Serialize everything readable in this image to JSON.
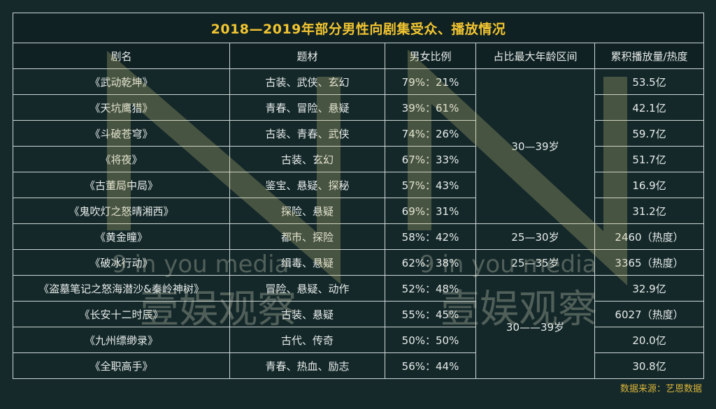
{
  "title": "2018—2019年部分男性向剧集受众、播放情况",
  "headers": [
    "剧名",
    "题材",
    "男女比例",
    "占比最大年龄区间",
    "累积播放量/热度"
  ],
  "rows": [
    {
      "name": "《武动乾坤》",
      "genre": "古装、武侠、玄幻",
      "ratio": "79%：21%",
      "plays": "53.5亿"
    },
    {
      "name": "《天坑鹰猎》",
      "genre": "青春、冒险、悬疑",
      "ratio": "39%：61%",
      "plays": "42.1亿"
    },
    {
      "name": "《斗破苍穹》",
      "genre": "古装、青春、武侠",
      "ratio": "74%：26%",
      "plays": "59.7亿"
    },
    {
      "name": "《将夜》",
      "genre": "古装、玄幻",
      "ratio": "67%：33%",
      "plays": "51.7亿"
    },
    {
      "name": "《古董局中局》",
      "genre": "鉴宝、悬疑、探秘",
      "ratio": "57%：43%",
      "plays": "16.9亿"
    },
    {
      "name": "《鬼吹灯之怒晴湘西》",
      "genre": "探险、悬疑",
      "ratio": "69%：31%",
      "plays": "31.2亿"
    },
    {
      "name": "《黄金瞳》",
      "genre": "都市、探险",
      "ratio": "58%：42%",
      "plays": "2460（热度）"
    },
    {
      "name": "《破冰行动》",
      "genre": "缉毒、悬疑",
      "ratio": "62%：38%",
      "plays": "3365（热度）"
    },
    {
      "name": "《盗墓笔记之怒海潜沙&秦岭神树》",
      "genre": "冒险、悬疑、动作",
      "ratio": "52%：48%",
      "plays": "32.9亿"
    },
    {
      "name": "《长安十二时辰》",
      "genre": "古装、悬疑",
      "ratio": "55%：45%",
      "plays": "6027（热度）"
    },
    {
      "name": "《九州缥缈录》",
      "genre": "古代、传奇",
      "ratio": "50%：50%",
      "plays": "20.0亿"
    },
    {
      "name": "《全职高手》",
      "genre": "青春、热血、励志",
      "ratio": "56%：44%",
      "plays": "30.8亿"
    }
  ],
  "age_groups": [
    "30—39岁",
    "25—30岁",
    "25—35岁",
    "30——39岁"
  ],
  "source": "数据来源：艺恩数据",
  "watermark": {
    "text_en": "9 in you media",
    "text_cn": "壹娱观察"
  },
  "colors": {
    "background": "#15292b",
    "title": "#f2c531",
    "grid": "#cfd7d6",
    "text": "#e8ecea",
    "source": "#d9b43a"
  }
}
